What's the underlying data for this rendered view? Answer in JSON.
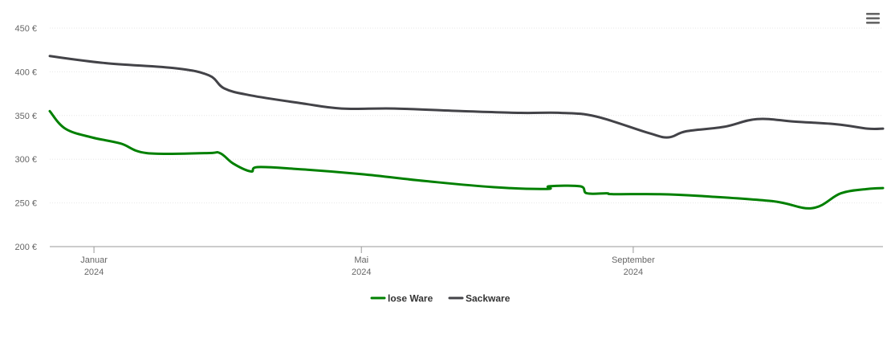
{
  "chart_data": {
    "type": "line",
    "title": "",
    "xlabel": "",
    "ylabel": "",
    "ylim": [
      200,
      450
    ],
    "y_ticks": [
      "200 €",
      "250 €",
      "300 €",
      "350 €",
      "400 €",
      "450 €"
    ],
    "y_tick_values": [
      200,
      250,
      300,
      350,
      400,
      450
    ],
    "x_ticks": [
      {
        "date": "2024-01-01",
        "label_top": "Januar",
        "label_bottom": "2024"
      },
      {
        "date": "2024-05-01",
        "label_top": "Mai",
        "label_bottom": "2024"
      },
      {
        "date": "2024-09-01",
        "label_top": "September",
        "label_bottom": "2024"
      }
    ],
    "xlim": [
      "2023-12-12",
      "2024-12-23"
    ],
    "grid": true,
    "legend_position": "bottom-center",
    "series": [
      {
        "name": "lose Ware",
        "color": "#008000",
        "points": [
          [
            "2023-12-12",
            355
          ],
          [
            "2023-12-19",
            335
          ],
          [
            "2023-12-31",
            325
          ],
          [
            "2024-01-13",
            318
          ],
          [
            "2024-01-25",
            307
          ],
          [
            "2024-02-21",
            307
          ],
          [
            "2024-02-27",
            307
          ],
          [
            "2024-03-04",
            295
          ],
          [
            "2024-03-12",
            286
          ],
          [
            "2024-03-15",
            291
          ],
          [
            "2024-04-01",
            289
          ],
          [
            "2024-05-01",
            283
          ],
          [
            "2024-05-30",
            275
          ],
          [
            "2024-06-30",
            268
          ],
          [
            "2024-07-24",
            266
          ],
          [
            "2024-07-25",
            269
          ],
          [
            "2024-08-08",
            269
          ],
          [
            "2024-08-11",
            261
          ],
          [
            "2024-08-20",
            261
          ],
          [
            "2024-08-23",
            260
          ],
          [
            "2024-09-13",
            260
          ],
          [
            "2024-10-01",
            258
          ],
          [
            "2024-11-03",
            252
          ],
          [
            "2024-11-21",
            244
          ],
          [
            "2024-12-04",
            261
          ],
          [
            "2024-12-16",
            266
          ],
          [
            "2024-12-23",
            267
          ]
        ]
      },
      {
        "name": "Sackware",
        "color": "#434348",
        "points": [
          [
            "2023-12-12",
            418
          ],
          [
            "2024-01-06",
            410
          ],
          [
            "2024-02-07",
            404
          ],
          [
            "2024-02-22",
            396
          ],
          [
            "2024-02-29",
            381
          ],
          [
            "2024-03-12",
            373
          ],
          [
            "2024-04-04",
            364
          ],
          [
            "2024-04-22",
            358
          ],
          [
            "2024-05-16",
            358
          ],
          [
            "2024-06-16",
            355
          ],
          [
            "2024-07-12",
            353
          ],
          [
            "2024-07-30",
            353
          ],
          [
            "2024-08-15",
            349
          ],
          [
            "2024-09-08",
            330
          ],
          [
            "2024-09-17",
            325
          ],
          [
            "2024-09-25",
            332
          ],
          [
            "2024-10-12",
            337
          ],
          [
            "2024-10-27",
            346
          ],
          [
            "2024-11-13",
            343
          ],
          [
            "2024-12-02",
            340
          ],
          [
            "2024-12-16",
            335
          ],
          [
            "2024-12-23",
            335
          ]
        ]
      }
    ]
  },
  "menu": {
    "icon": "hamburger-menu-icon"
  }
}
